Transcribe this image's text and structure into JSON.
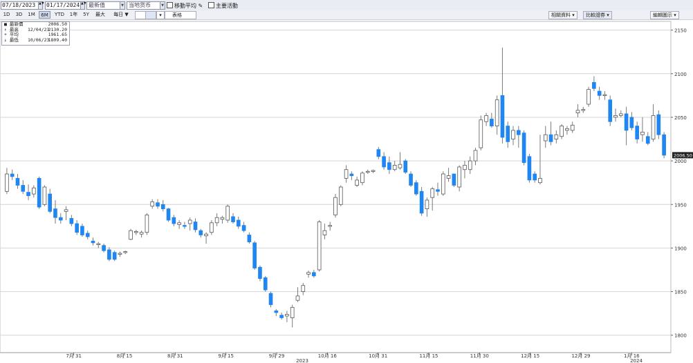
{
  "toolbar": {
    "start_date": "07/18/2023",
    "end_date": "01/17/2024",
    "price_type_label": "最新值",
    "currency_label": "当地货币",
    "moving_avg_label": "移動平均",
    "key_events_label": "主要活動",
    "periods": [
      "1D",
      "3D",
      "1M",
      "6M",
      "YTD",
      "1年",
      "5Y",
      "最大",
      "每日 ▼"
    ],
    "active_period": "6M",
    "table_label": "表格",
    "related_label": "相關資料",
    "compare_label": "比較證券",
    "edit_label": "編輯圖示"
  },
  "legend": {
    "last_label": "最新價",
    "last_value": "2006.50",
    "high_label": "最高",
    "high_date": "12/04/23",
    "high_value": "2130.20",
    "avg_label": "平均",
    "avg_value": "1961.65",
    "low_label": "最低",
    "low_date": "10/06/23",
    "low_value": "1809.40"
  },
  "colors": {
    "up": "#ffffff",
    "down": "#1f86f2",
    "grid": "#d4d4d4",
    "wick": "#7a7a7a",
    "last_tag": "#222222"
  },
  "chart_data": {
    "type": "candlestick",
    "title": "",
    "ylim": [
      1780,
      2160
    ],
    "y_ticks": [
      1800,
      1850,
      1900,
      1950,
      2000,
      2050,
      2100,
      2150
    ],
    "x_tick_labels": [
      "7月 31",
      "8月 15",
      "8月 31",
      "9月 15",
      "9月 29",
      "10月 16",
      "10月 31",
      "11月 15",
      "11月 30",
      "12月 15",
      "12月 29",
      "1月 16"
    ],
    "x_year_labels": [
      "2023",
      "2024"
    ],
    "last_price": "2006.50",
    "candles": [
      {
        "o": 1965,
        "h": 1992,
        "l": 1962,
        "c": 1985
      },
      {
        "o": 1985,
        "h": 1990,
        "l": 1978,
        "c": 1982
      },
      {
        "o": 1980,
        "h": 1985,
        "l": 1968,
        "c": 1972
      },
      {
        "o": 1972,
        "h": 1978,
        "l": 1962,
        "c": 1965
      },
      {
        "o": 1964,
        "h": 1973,
        "l": 1955,
        "c": 1960
      },
      {
        "o": 1962,
        "h": 1972,
        "l": 1958,
        "c": 1969
      },
      {
        "o": 1980,
        "h": 1982,
        "l": 1945,
        "c": 1947
      },
      {
        "o": 1950,
        "h": 1972,
        "l": 1948,
        "c": 1970
      },
      {
        "o": 1962,
        "h": 1968,
        "l": 1940,
        "c": 1942
      },
      {
        "o": 1945,
        "h": 1955,
        "l": 1928,
        "c": 1935
      },
      {
        "o": 1935,
        "h": 1940,
        "l": 1928,
        "c": 1932
      },
      {
        "o": 1942,
        "h": 1948,
        "l": 1932,
        "c": 1944
      },
      {
        "o": 1934,
        "h": 1938,
        "l": 1925,
        "c": 1928
      },
      {
        "o": 1928,
        "h": 1932,
        "l": 1915,
        "c": 1918
      },
      {
        "o": 1925,
        "h": 1928,
        "l": 1913,
        "c": 1915
      },
      {
        "o": 1917,
        "h": 1920,
        "l": 1910,
        "c": 1913
      },
      {
        "o": 1908,
        "h": 1912,
        "l": 1903,
        "c": 1906
      },
      {
        "o": 1904,
        "h": 1907,
        "l": 1900,
        "c": 1905
      },
      {
        "o": 1903,
        "h": 1905,
        "l": 1895,
        "c": 1897
      },
      {
        "o": 1898,
        "h": 1901,
        "l": 1885,
        "c": 1887
      },
      {
        "o": 1895,
        "h": 1897,
        "l": 1885,
        "c": 1887
      },
      {
        "o": 1893,
        "h": 1896,
        "l": 1890,
        "c": 1894
      },
      {
        "o": 1895,
        "h": 1897,
        "l": 1893,
        "c": 1896
      },
      {
        "o": 1910,
        "h": 1922,
        "l": 1909,
        "c": 1920
      },
      {
        "o": 1918,
        "h": 1921,
        "l": 1915,
        "c": 1919
      },
      {
        "o": 1916,
        "h": 1920,
        "l": 1912,
        "c": 1918
      },
      {
        "o": 1918,
        "h": 1940,
        "l": 1915,
        "c": 1938
      },
      {
        "o": 1948,
        "h": 1956,
        "l": 1945,
        "c": 1953
      },
      {
        "o": 1952,
        "h": 1956,
        "l": 1945,
        "c": 1948
      },
      {
        "o": 1950,
        "h": 1955,
        "l": 1942,
        "c": 1945
      },
      {
        "o": 1945,
        "h": 1946,
        "l": 1930,
        "c": 1932
      },
      {
        "o": 1935,
        "h": 1938,
        "l": 1925,
        "c": 1928
      },
      {
        "o": 1927,
        "h": 1932,
        "l": 1922,
        "c": 1929
      },
      {
        "o": 1926,
        "h": 1930,
        "l": 1922,
        "c": 1925
      },
      {
        "o": 1928,
        "h": 1935,
        "l": 1920,
        "c": 1932
      },
      {
        "o": 1930,
        "h": 1934,
        "l": 1918,
        "c": 1921
      },
      {
        "o": 1920,
        "h": 1922,
        "l": 1912,
        "c": 1915
      },
      {
        "o": 1914,
        "h": 1918,
        "l": 1905,
        "c": 1916
      },
      {
        "o": 1918,
        "h": 1932,
        "l": 1915,
        "c": 1929
      },
      {
        "o": 1929,
        "h": 1940,
        "l": 1925,
        "c": 1935
      },
      {
        "o": 1933,
        "h": 1937,
        "l": 1928,
        "c": 1935
      },
      {
        "o": 1932,
        "h": 1950,
        "l": 1929,
        "c": 1948
      },
      {
        "o": 1936,
        "h": 1940,
        "l": 1928,
        "c": 1930
      },
      {
        "o": 1932,
        "h": 1936,
        "l": 1922,
        "c": 1925
      },
      {
        "o": 1926,
        "h": 1930,
        "l": 1918,
        "c": 1920
      },
      {
        "o": 1915,
        "h": 1918,
        "l": 1905,
        "c": 1907
      },
      {
        "o": 1906,
        "h": 1908,
        "l": 1875,
        "c": 1877
      },
      {
        "o": 1878,
        "h": 1880,
        "l": 1862,
        "c": 1865
      },
      {
        "o": 1866,
        "h": 1868,
        "l": 1850,
        "c": 1852
      },
      {
        "o": 1848,
        "h": 1850,
        "l": 1832,
        "c": 1835
      },
      {
        "o": 1828,
        "h": 1830,
        "l": 1822,
        "c": 1826
      },
      {
        "o": 1823,
        "h": 1826,
        "l": 1818,
        "c": 1820
      },
      {
        "o": 1822,
        "h": 1828,
        "l": 1815,
        "c": 1824
      },
      {
        "o": 1820,
        "h": 1835,
        "l": 1809,
        "c": 1832
      },
      {
        "o": 1840,
        "h": 1855,
        "l": 1838,
        "c": 1845
      },
      {
        "o": 1850,
        "h": 1860,
        "l": 1846,
        "c": 1857
      },
      {
        "o": 1870,
        "h": 1874,
        "l": 1866,
        "c": 1872
      },
      {
        "o": 1872,
        "h": 1875,
        "l": 1866,
        "c": 1868
      },
      {
        "o": 1875,
        "h": 1932,
        "l": 1873,
        "c": 1930
      },
      {
        "o": 1915,
        "h": 1928,
        "l": 1910,
        "c": 1920
      },
      {
        "o": 1925,
        "h": 1930,
        "l": 1920,
        "c": 1926
      },
      {
        "o": 1938,
        "h": 1962,
        "l": 1935,
        "c": 1958
      },
      {
        "o": 1950,
        "h": 1972,
        "l": 1948,
        "c": 1970
      },
      {
        "o": 1980,
        "h": 1995,
        "l": 1975,
        "c": 1990
      },
      {
        "o": 1985,
        "h": 1988,
        "l": 1978,
        "c": 1983
      },
      {
        "o": 1972,
        "h": 1982,
        "l": 1970,
        "c": 1978
      },
      {
        "o": 1975,
        "h": 1988,
        "l": 1972,
        "c": 1986
      },
      {
        "o": 1987,
        "h": 1990,
        "l": 1985,
        "c": 1988
      },
      {
        "o": 1988,
        "h": 1990,
        "l": 1986,
        "c": 1989
      },
      {
        "o": 2013,
        "h": 2016,
        "l": 2002,
        "c": 2005
      },
      {
        "o": 2005,
        "h": 2010,
        "l": 1990,
        "c": 1993
      },
      {
        "o": 1998,
        "h": 2005,
        "l": 1985,
        "c": 1990
      },
      {
        "o": 1990,
        "h": 2000,
        "l": 1988,
        "c": 1995
      },
      {
        "o": 1992,
        "h": 2010,
        "l": 1990,
        "c": 1996
      },
      {
        "o": 2000,
        "h": 2002,
        "l": 1985,
        "c": 1987
      },
      {
        "o": 1985,
        "h": 1988,
        "l": 1970,
        "c": 1972
      },
      {
        "o": 1975,
        "h": 1978,
        "l": 1960,
        "c": 1962
      },
      {
        "o": 1965,
        "h": 1970,
        "l": 1937,
        "c": 1940
      },
      {
        "o": 1945,
        "h": 1958,
        "l": 1936,
        "c": 1955
      },
      {
        "o": 1958,
        "h": 1970,
        "l": 1943,
        "c": 1968
      },
      {
        "o": 1967,
        "h": 1975,
        "l": 1960,
        "c": 1965
      },
      {
        "o": 1962,
        "h": 1988,
        "l": 1960,
        "c": 1985
      },
      {
        "o": 1980,
        "h": 1992,
        "l": 1976,
        "c": 1983
      },
      {
        "o": 1985,
        "h": 1985,
        "l": 1970,
        "c": 1972
      },
      {
        "o": 1970,
        "h": 1995,
        "l": 1965,
        "c": 1993
      },
      {
        "o": 1990,
        "h": 2000,
        "l": 1980,
        "c": 1995
      },
      {
        "o": 1990,
        "h": 2005,
        "l": 1985,
        "c": 2000
      },
      {
        "o": 2000,
        "h": 2015,
        "l": 1995,
        "c": 2012
      },
      {
        "o": 2015,
        "h": 2052,
        "l": 2012,
        "c": 2047
      },
      {
        "o": 2045,
        "h": 2055,
        "l": 2040,
        "c": 2052
      },
      {
        "o": 2048,
        "h": 2055,
        "l": 2038,
        "c": 2040
      },
      {
        "o": 2040,
        "h": 2075,
        "l": 2030,
        "c": 2070
      },
      {
        "o": 2075,
        "h": 2130,
        "l": 2020,
        "c": 2027
      },
      {
        "o": 2040,
        "h": 2045,
        "l": 2015,
        "c": 2022
      },
      {
        "o": 2025,
        "h": 2040,
        "l": 2018,
        "c": 2035
      },
      {
        "o": 2035,
        "h": 2040,
        "l": 2015,
        "c": 2030
      },
      {
        "o": 2032,
        "h": 2035,
        "l": 1995,
        "c": 1998
      },
      {
        "o": 2005,
        "h": 2008,
        "l": 1975,
        "c": 1978
      },
      {
        "o": 1985,
        "h": 1988,
        "l": 1975,
        "c": 1978
      },
      {
        "o": 1975,
        "h": 2030,
        "l": 1973,
        "c": 1980
      },
      {
        "o": 2023,
        "h": 2040,
        "l": 2015,
        "c": 2030
      },
      {
        "o": 2030,
        "h": 2045,
        "l": 2018,
        "c": 2022
      },
      {
        "o": 2025,
        "h": 2035,
        "l": 2020,
        "c": 2030
      },
      {
        "o": 2028,
        "h": 2042,
        "l": 2025,
        "c": 2040
      },
      {
        "o": 2035,
        "h": 2040,
        "l": 2030,
        "c": 2037
      },
      {
        "o": 2035,
        "h": 2045,
        "l": 2032,
        "c": 2041
      },
      {
        "o": 2055,
        "h": 2065,
        "l": 2050,
        "c": 2058
      },
      {
        "o": 2058,
        "h": 2062,
        "l": 2055,
        "c": 2059
      },
      {
        "o": 2065,
        "h": 2085,
        "l": 2062,
        "c": 2082
      },
      {
        "o": 2090,
        "h": 2097,
        "l": 2080,
        "c": 2083
      },
      {
        "o": 2080,
        "h": 2085,
        "l": 2070,
        "c": 2075
      },
      {
        "o": 2075,
        "h": 2080,
        "l": 2070,
        "c": 2076
      },
      {
        "o": 2070,
        "h": 2075,
        "l": 2040,
        "c": 2045
      },
      {
        "o": 2050,
        "h": 2060,
        "l": 2045,
        "c": 2052
      },
      {
        "o": 2052,
        "h": 2058,
        "l": 2050,
        "c": 2054
      },
      {
        "o": 2054,
        "h": 2062,
        "l": 2018,
        "c": 2035
      },
      {
        "o": 2050,
        "h": 2056,
        "l": 2035,
        "c": 2038
      },
      {
        "o": 2040,
        "h": 2045,
        "l": 2020,
        "c": 2025
      },
      {
        "o": 2030,
        "h": 2050,
        "l": 2022,
        "c": 2033
      },
      {
        "o": 2028,
        "h": 2033,
        "l": 2018,
        "c": 2020
      },
      {
        "o": 2025,
        "h": 2065,
        "l": 2022,
        "c": 2052
      },
      {
        "o": 2053,
        "h": 2058,
        "l": 2025,
        "c": 2030
      },
      {
        "o": 2030,
        "h": 2033,
        "l": 2003,
        "c": 2006.5
      }
    ]
  }
}
